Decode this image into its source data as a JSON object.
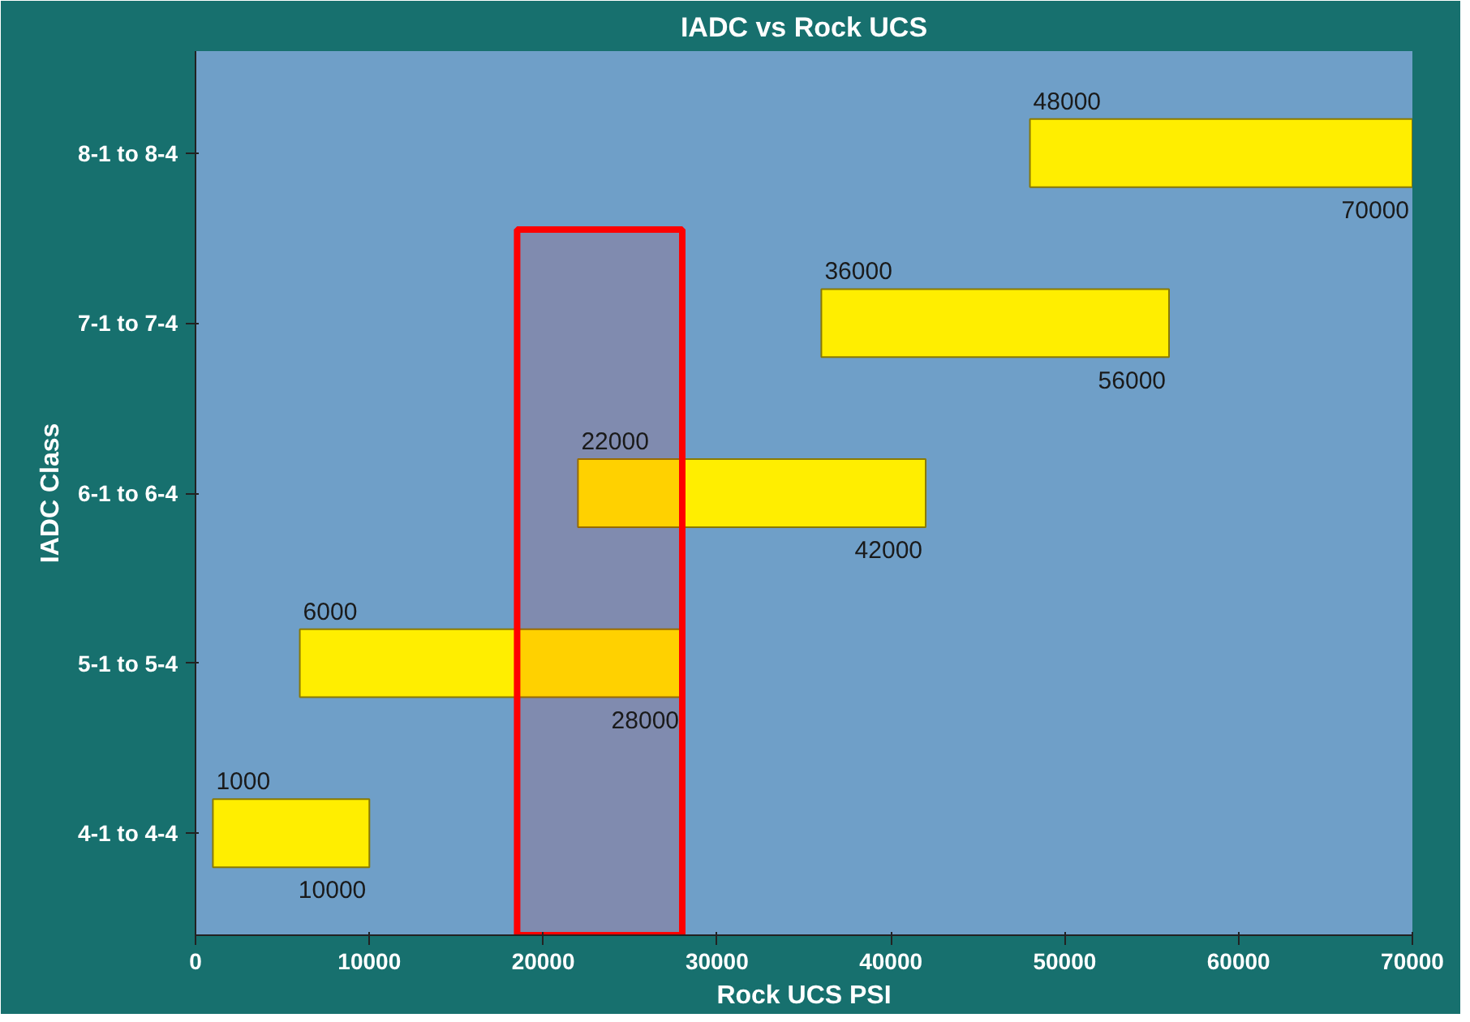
{
  "chart_data": {
    "type": "bar",
    "orientation": "horizontal",
    "title": "IADC vs Rock UCS",
    "xlabel": "Rock UCS PSI",
    "ylabel": "IADC Class",
    "categories": [
      "8-1 to 8-4",
      "7-1 to 7-4",
      "6-1 to 6-4",
      "5-1 to 5-4",
      "4-1 to 4-4"
    ],
    "base": [
      48000,
      36000,
      22000,
      6000,
      1000
    ],
    "values": [
      22000,
      20000,
      20000,
      22000,
      9000
    ],
    "color": "#ffee00",
    "xlim": [
      0,
      70000
    ],
    "xticks": [
      0,
      10000,
      20000,
      30000,
      40000,
      50000,
      60000,
      70000
    ],
    "grid": false,
    "bands": [
      {
        "axis": "x",
        "from": 18500,
        "to": 28000,
        "color": "#ff0000"
      }
    ],
    "annotations": [
      {
        "text": "48000",
        "x": 48000,
        "y": "8-1 to 8-4"
      },
      {
        "text": "70000",
        "x": 70000,
        "y": "8-1 to 8-4"
      },
      {
        "text": "36000",
        "x": 36000,
        "y": "7-1 to 7-4"
      },
      {
        "text": "56000",
        "x": 56000,
        "y": "7-1 to 7-4"
      },
      {
        "text": "22000",
        "x": 22000,
        "y": "6-1 to 6-4"
      },
      {
        "text": "42000",
        "x": 42000,
        "y": "6-1 to 6-4"
      },
      {
        "text": "6000",
        "x": 6000,
        "y": "5-1 to 5-4"
      },
      {
        "text": "28000",
        "x": 28000,
        "y": "5-1 to 5-4"
      },
      {
        "text": "1000",
        "x": 1000,
        "y": "4-1 to 4-4"
      },
      {
        "text": "10000",
        "x": 10000,
        "y": "4-1 to 4-4"
      }
    ]
  }
}
